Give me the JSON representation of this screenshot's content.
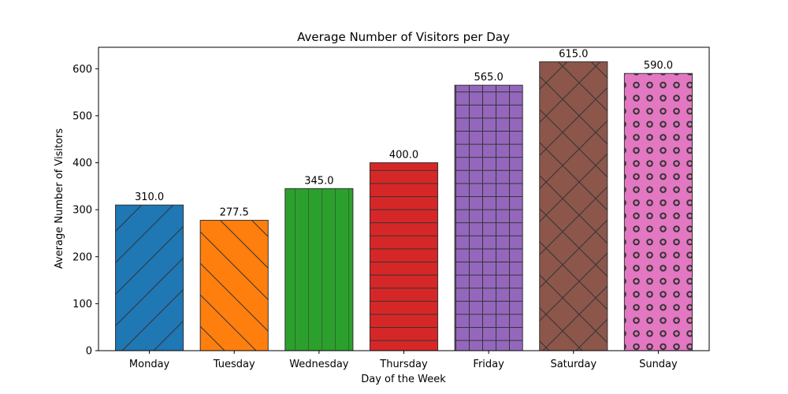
{
  "chart_data": {
    "type": "bar",
    "title": "Average Number of Visitors per Day",
    "xlabel": "Day of the Week",
    "ylabel": "Average Number of Visitors",
    "categories": [
      "Monday",
      "Tuesday",
      "Wednesday",
      "Thursday",
      "Friday",
      "Saturday",
      "Sunday"
    ],
    "values": [
      310.0,
      277.5,
      345.0,
      400.0,
      565.0,
      615.0,
      590.0
    ],
    "value_labels": [
      "310.0",
      "277.5",
      "345.0",
      "400.0",
      "565.0",
      "615.0",
      "590.0"
    ],
    "colors": [
      "#1f77b4",
      "#ff7f0e",
      "#2ca02c",
      "#d62728",
      "#9467bd",
      "#8c564b",
      "#e377c2"
    ],
    "hatches": [
      "forward-diagonal",
      "back-diagonal",
      "vertical",
      "horizontal",
      "grid",
      "cross-diagonal",
      "circles"
    ],
    "ylim": [
      0,
      645.75
    ],
    "yticks": [
      0,
      100,
      200,
      300,
      400,
      500,
      600
    ],
    "grid": false,
    "legend": false
  }
}
